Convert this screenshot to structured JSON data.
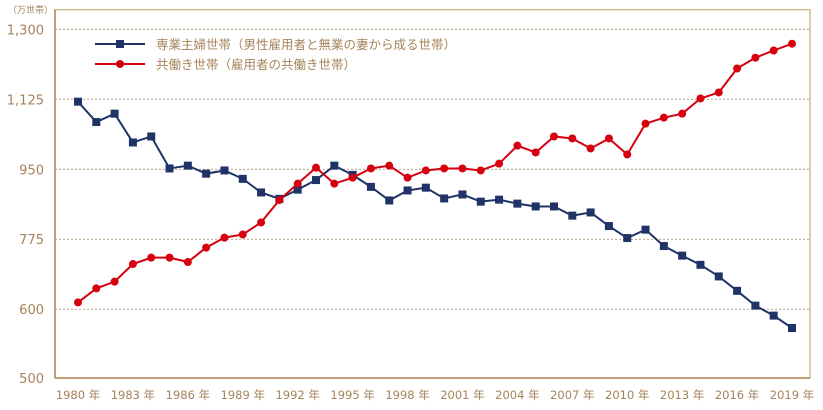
{
  "chart_data": {
    "type": "line",
    "unit_label": "（万世帯）",
    "xlabel": "",
    "ylabel": "万世帯",
    "ylim": [
      428,
      1300
    ],
    "y_ticks": [
      600,
      775,
      950,
      1125,
      1300
    ],
    "y_tick_labels": [
      "600",
      "775",
      "950",
      "1,125",
      "1,300"
    ],
    "y_axis_bottom_label": "500",
    "grid": true,
    "legend_position": "top-left",
    "x": [
      1980,
      1981,
      1982,
      1983,
      1984,
      1985,
      1986,
      1987,
      1988,
      1989,
      1990,
      1991,
      1992,
      1993,
      1994,
      1995,
      1996,
      1997,
      1998,
      1999,
      2000,
      2001,
      2002,
      2003,
      2004,
      2005,
      2006,
      2007,
      2008,
      2009,
      2010,
      2011,
      2012,
      2013,
      2014,
      2015,
      2016,
      2017,
      2018,
      2019
    ],
    "x_ticks": [
      1980,
      1983,
      1986,
      1989,
      1992,
      1995,
      1998,
      2001,
      2004,
      2007,
      2010,
      2013,
      2016,
      2019
    ],
    "x_tick_labels": [
      "1980 年",
      "1983 年",
      "1986 年",
      "1989 年",
      "1992 年",
      "1995 年",
      "1998 年",
      "2001 年",
      "2004 年",
      "2007 年",
      "2010 年",
      "2013 年",
      "2016 年",
      "2019 年"
    ],
    "series": [
      {
        "name": "専業主婦世帯（男性雇用者と無業の妻から成る世帯）",
        "color": "#1f3366",
        "marker": "square",
        "values": [
          1119,
          1068,
          1089,
          1017,
          1032,
          952,
          959,
          939,
          947,
          926,
          892,
          876,
          899,
          923,
          959,
          936,
          906,
          872,
          897,
          904,
          877,
          887,
          869,
          874,
          864,
          857,
          857,
          834,
          842,
          808,
          778,
          799,
          758,
          734,
          711,
          682,
          646,
          609,
          584,
          553
        ]
      },
      {
        "name": "共働き世帯（雇用者の共働き世帯）",
        "color": "#d7000f",
        "marker": "circle",
        "values": [
          617,
          652,
          669,
          713,
          729,
          729,
          718,
          754,
          779,
          787,
          817,
          873,
          914,
          954,
          914,
          929,
          952,
          959,
          929,
          947,
          952,
          952,
          947,
          964,
          1009,
          992,
          1032,
          1027,
          1002,
          1027,
          987,
          1064,
          1079,
          1089,
          1127,
          1142,
          1202,
          1229,
          1247,
          1264
        ]
      }
    ]
  }
}
